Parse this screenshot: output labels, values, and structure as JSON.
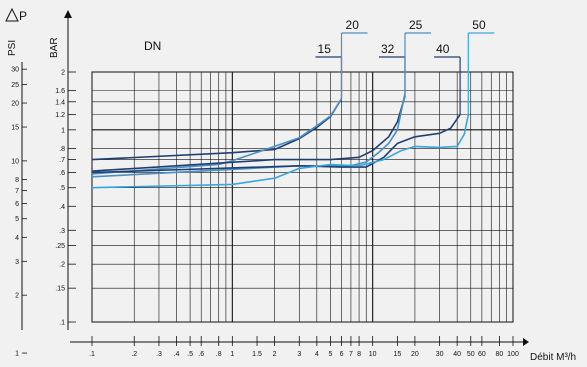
{
  "chart_data": {
    "type": "line",
    "title": "",
    "xlabel": "Débit M³/h",
    "ylabel_psi": "PSI",
    "ylabel_bar": "BAR",
    "y_axis_symbol": "ΔP",
    "dn_label": "DN",
    "x_scale": "log",
    "y_scale": "log",
    "xlim": [
      0.1,
      100
    ],
    "ylim_bar": [
      0.1,
      2
    ],
    "grid": true,
    "x_ticks": [
      {
        "v": 0.1,
        "label": ".1"
      },
      {
        "v": 0.2,
        "label": ".2"
      },
      {
        "v": 0.3,
        "label": ".3"
      },
      {
        "v": 0.4,
        "label": ".4"
      },
      {
        "v": 0.5,
        "label": ".5"
      },
      {
        "v": 0.6,
        "label": ".6"
      },
      {
        "v": 0.8,
        "label": ".8"
      },
      {
        "v": 1,
        "label": "1"
      },
      {
        "v": 1.5,
        "label": "1.5"
      },
      {
        "v": 2,
        "label": "2"
      },
      {
        "v": 3,
        "label": "3"
      },
      {
        "v": 4,
        "label": "4"
      },
      {
        "v": 5,
        "label": "5"
      },
      {
        "v": 6,
        "label": "6"
      },
      {
        "v": 7,
        "label": "7"
      },
      {
        "v": 8,
        "label": "8"
      },
      {
        "v": 10,
        "label": "10"
      },
      {
        "v": 15,
        "label": "15"
      },
      {
        "v": 20,
        "label": "20"
      },
      {
        "v": 30,
        "label": "30"
      },
      {
        "v": 40,
        "label": "40"
      },
      {
        "v": 50,
        "label": "50"
      },
      {
        "v": 60,
        "label": "60"
      },
      {
        "v": 80,
        "label": "80"
      },
      {
        "v": 100,
        "label": "100"
      }
    ],
    "bar_ticks": [
      {
        "v": 2,
        "label": "2"
      },
      {
        "v": 1.6,
        "label": "1.6"
      },
      {
        "v": 1.4,
        "label": "1.4"
      },
      {
        "v": 1.2,
        "label": "1.2"
      },
      {
        "v": 1,
        "label": "1"
      },
      {
        "v": 0.8,
        "label": ".8"
      },
      {
        "v": 0.7,
        "label": ".7"
      },
      {
        "v": 0.6,
        "label": ".6"
      },
      {
        "v": 0.5,
        "label": ".5"
      },
      {
        "v": 0.4,
        "label": ".4"
      },
      {
        "v": 0.3,
        "label": ".3"
      },
      {
        "v": 0.25,
        "label": ".25"
      },
      {
        "v": 0.2,
        "label": ".2"
      },
      {
        "v": 0.15,
        "label": ".15"
      },
      {
        "v": 0.1,
        "label": ".1"
      }
    ],
    "psi_ticks": [
      {
        "v": 30,
        "label": "30"
      },
      {
        "v": 25,
        "label": "25"
      },
      {
        "v": 20,
        "label": "20"
      },
      {
        "v": 15,
        "label": "15"
      },
      {
        "v": 10,
        "label": "10"
      },
      {
        "v": 8,
        "label": "8"
      },
      {
        "v": 7,
        "label": "7"
      },
      {
        "v": 6,
        "label": "6"
      },
      {
        "v": 5,
        "label": "5"
      },
      {
        "v": 4,
        "label": "4"
      },
      {
        "v": 3,
        "label": "3"
      },
      {
        "v": 2,
        "label": "2"
      },
      {
        "v": 1,
        "label": "1"
      }
    ],
    "series": [
      {
        "name": "15",
        "color": "#1f3f73",
        "label_pos": "upper-left",
        "points": [
          [
            0.1,
            0.7
          ],
          [
            1,
            0.76
          ],
          [
            2,
            0.79
          ],
          [
            3,
            0.9
          ],
          [
            4,
            1.03
          ],
          [
            5,
            1.17
          ],
          [
            6,
            1.45
          ]
        ]
      },
      {
        "name": "20",
        "color": "#4a90c4",
        "label_pos": "upper-right",
        "points": [
          [
            0.1,
            0.59
          ],
          [
            0.8,
            0.66
          ],
          [
            1,
            0.69
          ],
          [
            2,
            0.82
          ],
          [
            3,
            0.91
          ],
          [
            4,
            1.05
          ],
          [
            5,
            1.18
          ],
          [
            6,
            1.45
          ]
        ]
      },
      {
        "name": "32",
        "color": "#1f3f73",
        "label_pos": "upper-left",
        "points": [
          [
            0.1,
            0.61
          ],
          [
            2,
            0.7
          ],
          [
            5,
            0.7
          ],
          [
            8,
            0.72
          ],
          [
            10,
            0.78
          ],
          [
            13,
            0.92
          ],
          [
            15,
            1.1
          ],
          [
            17,
            1.5
          ]
        ]
      },
      {
        "name": "25",
        "color": "#4a90c4",
        "label_pos": "upper-right",
        "points": [
          [
            0.1,
            0.57
          ],
          [
            3,
            0.65
          ],
          [
            5,
            0.65
          ],
          [
            7,
            0.65
          ],
          [
            9,
            0.68
          ],
          [
            11,
            0.76
          ],
          [
            13,
            0.85
          ],
          [
            15,
            1.0
          ],
          [
            17,
            1.55
          ]
        ]
      },
      {
        "name": "40",
        "color": "#1f3f73",
        "label_pos": "upper-left",
        "points": [
          [
            0.1,
            0.6
          ],
          [
            3,
            0.65
          ],
          [
            6,
            0.64
          ],
          [
            9,
            0.64
          ],
          [
            12,
            0.72
          ],
          [
            15,
            0.85
          ],
          [
            20,
            0.92
          ],
          [
            30,
            0.96
          ],
          [
            36,
            1.02
          ],
          [
            42,
            1.2
          ]
        ]
      },
      {
        "name": "50",
        "color": "#39a6dd",
        "label_pos": "upper-right",
        "points": [
          [
            0.1,
            0.5
          ],
          [
            1,
            0.52
          ],
          [
            2,
            0.56
          ],
          [
            3,
            0.63
          ],
          [
            5,
            0.66
          ],
          [
            8,
            0.65
          ],
          [
            12,
            0.7
          ],
          [
            16,
            0.78
          ],
          [
            20,
            0.82
          ],
          [
            30,
            0.81
          ],
          [
            40,
            0.82
          ],
          [
            45,
            0.95
          ],
          [
            48,
            1.2
          ]
        ]
      }
    ]
  }
}
